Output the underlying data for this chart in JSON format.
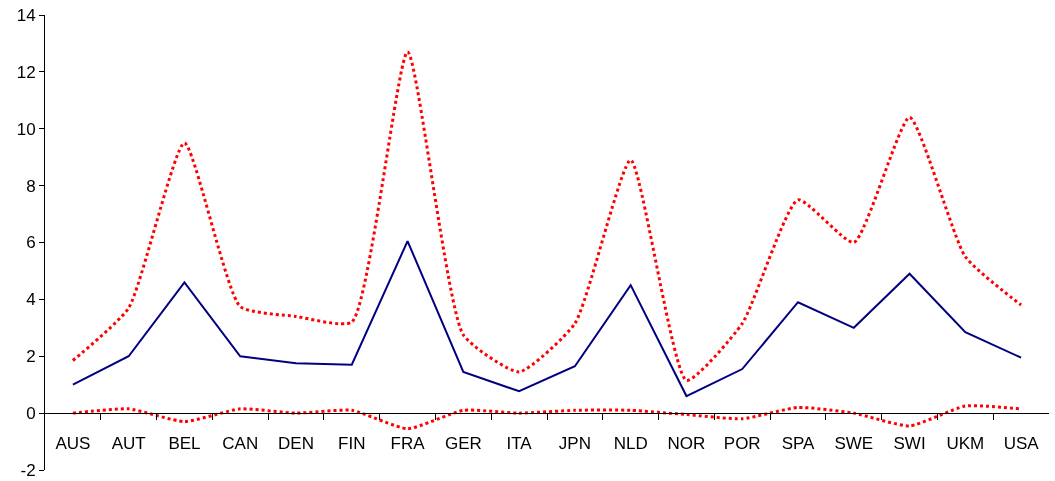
{
  "chart_data": {
    "type": "line",
    "categories": [
      "AUS",
      "AUT",
      "BEL",
      "CAN",
      "DEN",
      "FIN",
      "FRA",
      "GER",
      "ITA",
      "JPN",
      "NLD",
      "NOR",
      "POR",
      "SPA",
      "SWE",
      "SWI",
      "UKM",
      "USA"
    ],
    "series": [
      {
        "color": "#000080",
        "line_style": "solid",
        "values": [
          1.0,
          2.0,
          4.6,
          2.0,
          1.75,
          1.7,
          6.05,
          1.45,
          0.77,
          1.65,
          4.5,
          0.6,
          1.55,
          3.9,
          3.0,
          4.9,
          2.85,
          1.95
        ]
      },
      {
        "color": "#ff0000",
        "line_style": "dotted",
        "values": [
          1.85,
          3.7,
          9.5,
          3.75,
          3.4,
          3.2,
          12.7,
          2.75,
          1.45,
          3.15,
          8.9,
          1.15,
          3.15,
          7.5,
          6.0,
          10.4,
          5.5,
          3.8
        ]
      },
      {
        "color": "#ff0000",
        "line_style": "dotted",
        "values": [
          0.0,
          0.15,
          -0.3,
          0.15,
          0.0,
          0.1,
          -0.55,
          0.1,
          0.0,
          0.1,
          0.1,
          -0.05,
          -0.2,
          0.2,
          0.0,
          -0.45,
          0.25,
          0.15
        ]
      }
    ],
    "ylim": [
      -2,
      14
    ],
    "yticks": [
      -2,
      0,
      2,
      4,
      6,
      8,
      10,
      12,
      14
    ]
  }
}
